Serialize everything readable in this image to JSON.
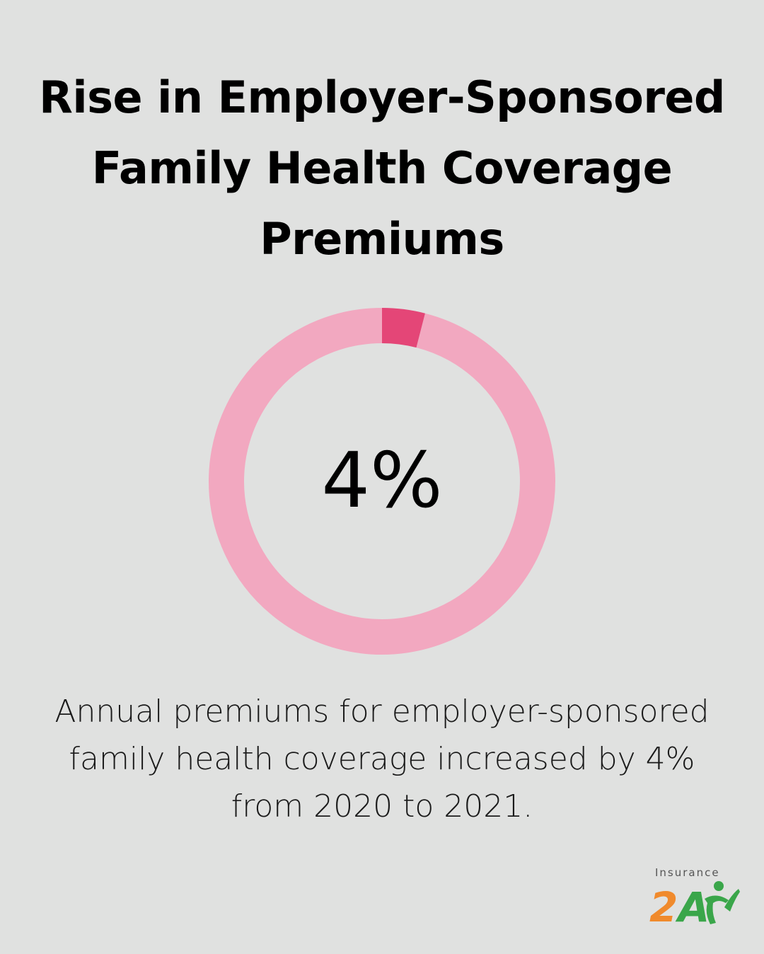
{
  "title": "Rise in Employer-Sponsored Family Health Coverage Premiums",
  "chart_data": {
    "type": "pie",
    "variant": "donut",
    "value_percent": 4,
    "center_label": "4%",
    "caption": "Annual premiums for employer-sponsored family health coverage increased by 4% from 2020 to 2021.",
    "colors": {
      "highlight": "#e44677",
      "track": "#f2a8c0",
      "background": "#e0e1e0"
    }
  },
  "logo": {
    "word": "Insurance",
    "mark": "2A",
    "colors": {
      "two": "#f08a2c",
      "a": "#3aa64a",
      "figure": "#3aa64a"
    }
  }
}
